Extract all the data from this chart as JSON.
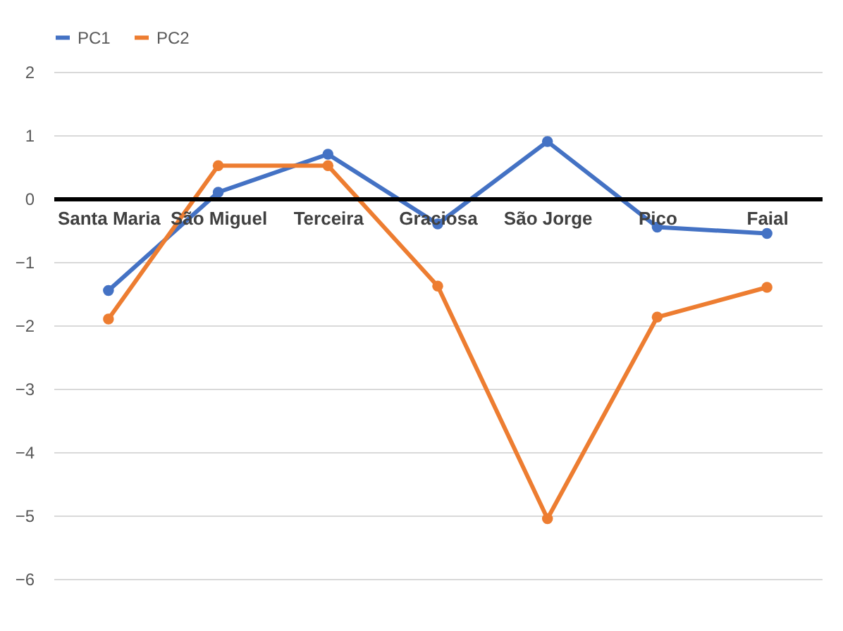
{
  "chart_data": {
    "type": "line",
    "categories": [
      "Santa Maria",
      "São Miguel",
      "Terceira",
      "Graciosa",
      "São Jorge",
      "Pico",
      "Faial"
    ],
    "series": [
      {
        "name": "PC1",
        "color": "#4472c4",
        "values": [
          -1.45,
          0.1,
          0.7,
          -0.4,
          0.9,
          -0.45,
          -0.55
        ]
      },
      {
        "name": "PC2",
        "color": "#ed7d31",
        "values": [
          -1.9,
          0.52,
          0.52,
          -1.38,
          -5.05,
          -1.87,
          -1.4
        ]
      }
    ],
    "ylim": [
      -6,
      2
    ],
    "yticks": [
      -6,
      -5,
      -4,
      -3,
      -2,
      -1,
      0,
      1,
      2
    ],
    "grid": "y",
    "legend": "top",
    "marker": "circle"
  }
}
